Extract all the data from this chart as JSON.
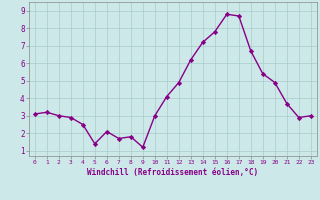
{
  "x": [
    0,
    1,
    2,
    3,
    4,
    5,
    6,
    7,
    8,
    9,
    10,
    11,
    12,
    13,
    14,
    15,
    16,
    17,
    18,
    19,
    20,
    21,
    22,
    23
  ],
  "y": [
    3.1,
    3.2,
    3.0,
    2.9,
    2.5,
    1.4,
    2.1,
    1.7,
    1.8,
    1.2,
    3.0,
    4.1,
    4.9,
    6.2,
    7.2,
    7.8,
    8.8,
    8.7,
    6.7,
    5.4,
    4.9,
    3.7,
    2.9,
    3.0
  ],
  "line_color": "#880088",
  "marker": "D",
  "marker_size": 2.2,
  "xlabel": "Windchill (Refroidissement éolien,°C)",
  "xlim": [
    -0.5,
    23.5
  ],
  "ylim": [
    0.7,
    9.5
  ],
  "yticks": [
    1,
    2,
    3,
    4,
    5,
    6,
    7,
    8,
    9
  ],
  "xticks": [
    0,
    1,
    2,
    3,
    4,
    5,
    6,
    7,
    8,
    9,
    10,
    11,
    12,
    13,
    14,
    15,
    16,
    17,
    18,
    19,
    20,
    21,
    22,
    23
  ],
  "background_color": "#cce8e8",
  "grid_color": "#aacccc",
  "tick_label_color": "#880088",
  "xlabel_color": "#880088",
  "line_width": 1.0
}
